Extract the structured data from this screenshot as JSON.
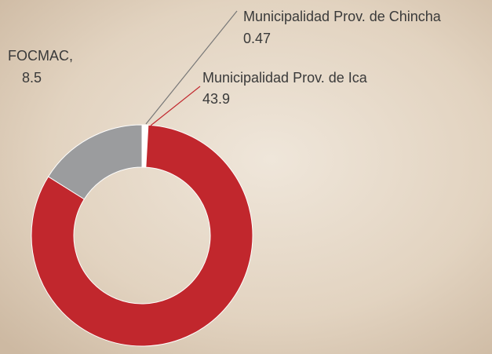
{
  "chart_data": {
    "type": "donut",
    "categories": [
      "Municipalidad Prov. de Chincha",
      "Municipalidad Prov. de Ica",
      "FOCMAC,"
    ],
    "values": [
      0.47,
      43.9,
      8.5
    ],
    "colors": [
      "#ffffff",
      "#c1272d",
      "#9b9c9e"
    ]
  }
}
